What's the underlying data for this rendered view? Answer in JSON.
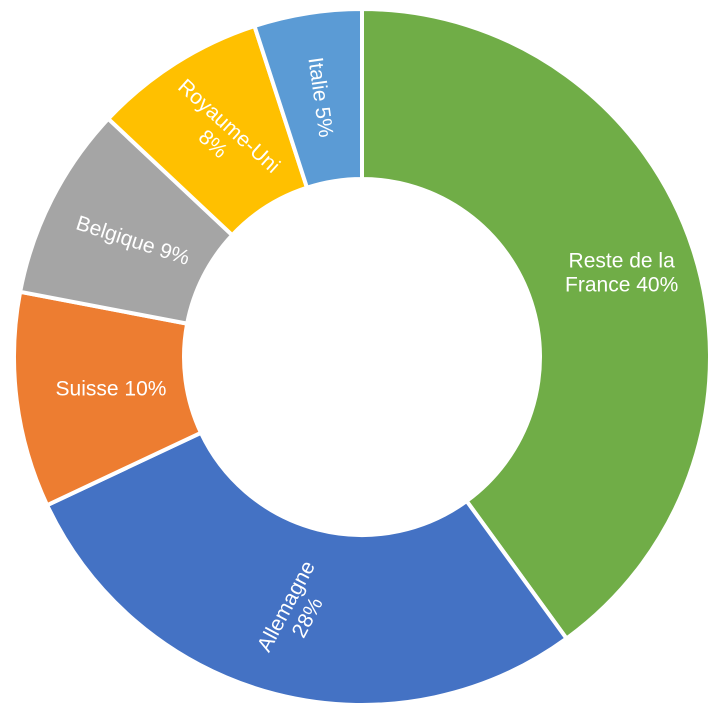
{
  "chart_data": {
    "type": "pie",
    "donut": true,
    "start_angle_deg": 0,
    "direction": "clockwise",
    "slices": [
      {
        "name": "Reste de la France",
        "value": 40,
        "color": "#70AD47",
        "label_lines": [
          "Reste de la",
          "France 40%"
        ]
      },
      {
        "name": "Allemagne",
        "value": 28,
        "color": "#4472C4",
        "label_lines": [
          "Allemagne",
          "28%"
        ]
      },
      {
        "name": "Suisse",
        "value": 10,
        "color": "#ED7D31",
        "label_lines": [
          "Suisse 10%"
        ]
      },
      {
        "name": "Belgique",
        "value": 9,
        "color": "#A5A5A5",
        "label_lines": [
          "Belgique 9%"
        ]
      },
      {
        "name": "Royaume-Uni",
        "value": 8,
        "color": "#FFC000",
        "label_lines": [
          "Royaume-Uni",
          "8%"
        ]
      },
      {
        "name": "Italie",
        "value": 5,
        "color": "#5B9BD5",
        "label_lines": [
          "Italie 5%"
        ]
      }
    ],
    "title": "",
    "legend": "none"
  }
}
